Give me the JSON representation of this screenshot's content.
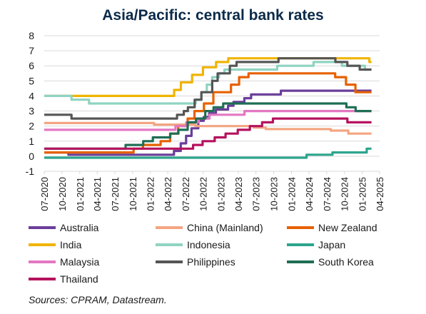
{
  "chart_data": {
    "type": "line",
    "title": "Asia/Pacific: central bank rates",
    "xlabel": "",
    "ylabel": "",
    "ylim": [
      -1,
      8
    ],
    "y_ticks": [
      -1,
      0,
      1,
      2,
      3,
      4,
      5,
      6,
      7,
      8
    ],
    "x_ticks": [
      "07-2020",
      "10-2020",
      "01-2021",
      "04-2021",
      "07-2021",
      "10-2021",
      "01-2022",
      "04-2022",
      "07-2022",
      "10-2022",
      "01-2023",
      "04-2023",
      "07-2023",
      "10-2023",
      "01-2024",
      "04-2024",
      "07-2024",
      "10-2024",
      "01-2025",
      "04-2025"
    ],
    "grid": true,
    "legend_position": "bottom",
    "series": [
      {
        "name": "Australia",
        "color": "#6a3d9a",
        "points": [
          [
            "2020-07-01",
            0.25
          ],
          [
            "2020-11-03",
            0.1
          ],
          [
            "2022-05-03",
            0.35
          ],
          [
            "2022-06-07",
            0.85
          ],
          [
            "2022-07-05",
            1.35
          ],
          [
            "2022-08-02",
            1.85
          ],
          [
            "2022-09-06",
            2.35
          ],
          [
            "2022-10-04",
            2.6
          ],
          [
            "2022-11-01",
            2.85
          ],
          [
            "2022-12-06",
            3.1
          ],
          [
            "2023-02-07",
            3.35
          ],
          [
            "2023-03-07",
            3.6
          ],
          [
            "2023-05-02",
            3.85
          ],
          [
            "2023-06-06",
            4.1
          ],
          [
            "2023-11-07",
            4.35
          ],
          [
            "2025-02-18",
            4.35
          ]
        ]
      },
      {
        "name": "China (Mainland)",
        "color": "#f4a582",
        "points": [
          [
            "2020-07-01",
            2.2
          ],
          [
            "2022-01-20",
            2.1
          ],
          [
            "2022-08-22",
            2.0
          ],
          [
            "2023-06-20",
            1.9
          ],
          [
            "2023-08-21",
            1.8
          ],
          [
            "2024-07-22",
            1.7
          ],
          [
            "2024-10-21",
            1.5
          ],
          [
            "2025-02-18",
            1.5
          ]
        ]
      },
      {
        "name": "New Zealand",
        "color": "#e66101",
        "points": [
          [
            "2020-07-01",
            0.25
          ],
          [
            "2021-10-06",
            0.5
          ],
          [
            "2021-11-24",
            0.75
          ],
          [
            "2022-02-23",
            1.0
          ],
          [
            "2022-04-13",
            1.5
          ],
          [
            "2022-05-25",
            2.0
          ],
          [
            "2022-07-13",
            2.5
          ],
          [
            "2022-08-17",
            3.0
          ],
          [
            "2022-10-05",
            3.5
          ],
          [
            "2022-11-23",
            4.25
          ],
          [
            "2023-02-22",
            4.75
          ],
          [
            "2023-04-05",
            5.25
          ],
          [
            "2023-05-24",
            5.5
          ],
          [
            "2024-08-14",
            5.25
          ],
          [
            "2024-10-09",
            4.75
          ],
          [
            "2024-11-27",
            4.25
          ],
          [
            "2025-02-18",
            4.25
          ]
        ]
      },
      {
        "name": "India",
        "color": "#f0b400",
        "points": [
          [
            "2020-07-01",
            4.0
          ],
          [
            "2022-05-04",
            4.4
          ],
          [
            "2022-06-08",
            4.9
          ],
          [
            "2022-08-05",
            5.4
          ],
          [
            "2022-09-30",
            5.9
          ],
          [
            "2022-12-07",
            6.25
          ],
          [
            "2023-02-08",
            6.5
          ],
          [
            "2025-02-07",
            6.25
          ],
          [
            "2025-02-18",
            6.25
          ]
        ]
      },
      {
        "name": "Indonesia",
        "color": "#8fd3c1",
        "points": [
          [
            "2020-07-01",
            4.0
          ],
          [
            "2020-07-16",
            4.0
          ],
          [
            "2020-11-19",
            3.75
          ],
          [
            "2021-02-18",
            3.5
          ],
          [
            "2022-08-23",
            3.75
          ],
          [
            "2022-09-22",
            4.25
          ],
          [
            "2022-10-20",
            4.75
          ],
          [
            "2022-11-17",
            5.25
          ],
          [
            "2022-12-22",
            5.5
          ],
          [
            "2023-01-19",
            5.75
          ],
          [
            "2023-10-19",
            6.0
          ],
          [
            "2024-04-24",
            6.25
          ],
          [
            "2024-09-18",
            6.0
          ],
          [
            "2025-01-15",
            5.75
          ],
          [
            "2025-02-18",
            5.75
          ]
        ]
      },
      {
        "name": "Japan",
        "color": "#2ca58d",
        "points": [
          [
            "2020-07-01",
            -0.1
          ],
          [
            "2024-03-19",
            0.1
          ],
          [
            "2024-07-31",
            0.25
          ],
          [
            "2025-01-24",
            0.5
          ],
          [
            "2025-02-18",
            0.5
          ]
        ]
      },
      {
        "name": "Malaysia",
        "color": "#e377c2",
        "points": [
          [
            "2020-07-01",
            1.75
          ],
          [
            "2022-05-11",
            2.0
          ],
          [
            "2022-07-06",
            2.25
          ],
          [
            "2022-09-08",
            2.5
          ],
          [
            "2022-11-03",
            2.75
          ],
          [
            "2023-05-03",
            3.0
          ],
          [
            "2025-02-18",
            3.0
          ]
        ]
      },
      {
        "name": "Philippines",
        "color": "#555555",
        "points": [
          [
            "2020-07-01",
            2.75
          ],
          [
            "2020-11-19",
            2.5
          ],
          [
            "2022-05-19",
            2.75
          ],
          [
            "2022-06-23",
            3.0
          ],
          [
            "2022-07-14",
            3.25
          ],
          [
            "2022-08-18",
            3.75
          ],
          [
            "2022-09-22",
            4.25
          ],
          [
            "2022-11-17",
            5.0
          ],
          [
            "2022-12-15",
            5.5
          ],
          [
            "2023-02-16",
            6.0
          ],
          [
            "2023-03-23",
            6.25
          ],
          [
            "2023-10-26",
            6.5
          ],
          [
            "2024-08-15",
            6.25
          ],
          [
            "2024-10-16",
            6.0
          ],
          [
            "2024-12-19",
            5.75
          ],
          [
            "2025-02-18",
            5.75
          ]
        ]
      },
      {
        "name": "South Korea",
        "color": "#1f6e54",
        "points": [
          [
            "2020-07-01",
            0.5
          ],
          [
            "2021-08-26",
            0.75
          ],
          [
            "2021-11-25",
            1.0
          ],
          [
            "2022-01-14",
            1.25
          ],
          [
            "2022-04-14",
            1.5
          ],
          [
            "2022-05-26",
            1.75
          ],
          [
            "2022-07-13",
            2.25
          ],
          [
            "2022-08-25",
            2.5
          ],
          [
            "2022-10-12",
            3.0
          ],
          [
            "2022-11-24",
            3.25
          ],
          [
            "2023-01-13",
            3.5
          ],
          [
            "2024-10-11",
            3.25
          ],
          [
            "2024-11-28",
            3.0
          ],
          [
            "2025-02-18",
            3.0
          ]
        ]
      },
      {
        "name": "Thailand",
        "color": "#b5125e",
        "points": [
          [
            "2020-07-01",
            0.5
          ],
          [
            "2022-08-10",
            0.75
          ],
          [
            "2022-09-28",
            1.0
          ],
          [
            "2022-11-30",
            1.25
          ],
          [
            "2023-01-25",
            1.5
          ],
          [
            "2023-03-29",
            1.75
          ],
          [
            "2023-05-31",
            2.0
          ],
          [
            "2023-08-02",
            2.25
          ],
          [
            "2023-09-27",
            2.5
          ],
          [
            "2024-10-16",
            2.25
          ],
          [
            "2025-02-18",
            2.25
          ]
        ]
      }
    ]
  },
  "legend": {
    "items": [
      {
        "label": "Australia",
        "color": "#6a3d9a"
      },
      {
        "label": "China (Mainland)",
        "color": "#f4a582"
      },
      {
        "label": "New Zealand",
        "color": "#e66101"
      },
      {
        "label": "India",
        "color": "#f0b400"
      },
      {
        "label": "Indonesia",
        "color": "#8fd3c1"
      },
      {
        "label": "Japan",
        "color": "#2ca58d"
      },
      {
        "label": "Malaysia",
        "color": "#e377c2"
      },
      {
        "label": "Philippines",
        "color": "#555555"
      },
      {
        "label": "South Korea",
        "color": "#1f6e54"
      },
      {
        "label": "Thailand",
        "color": "#b5125e"
      }
    ]
  },
  "footer": {
    "sources": "Sources: CPRAM, Datastream."
  }
}
